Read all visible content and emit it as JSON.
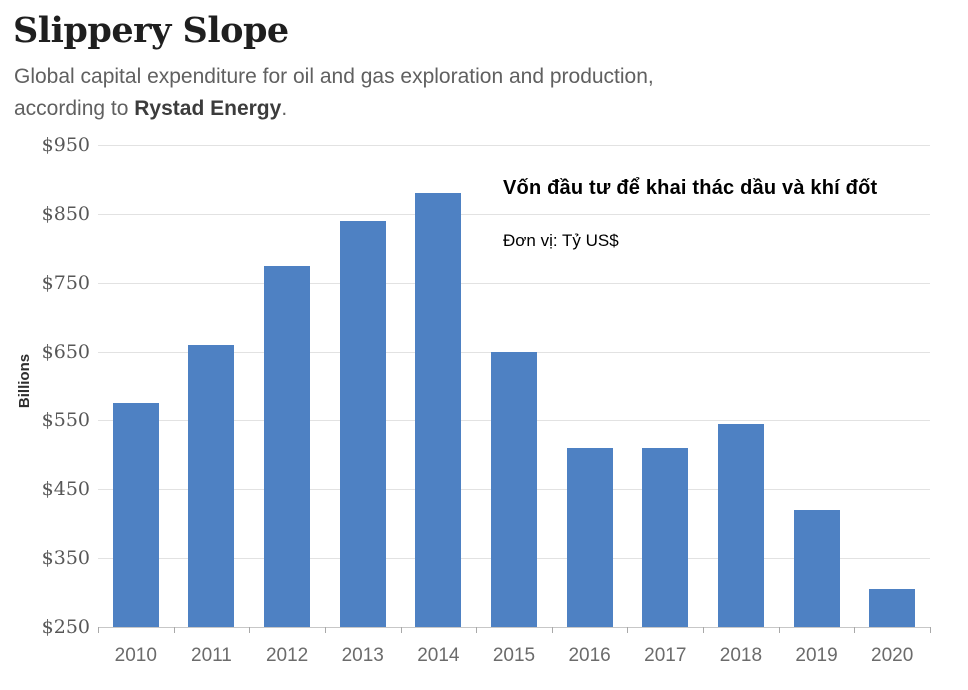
{
  "header": {
    "title": "Slippery Slope",
    "subtitle_line1": "Global capital expenditure for oil and gas exploration and production,",
    "subtitle_prefix": "according to ",
    "subtitle_source": "Rystad Energy",
    "subtitle_suffix": "."
  },
  "overlay": {
    "title_vi": "Vốn đầu tư để khai thác dầu và khí đốt",
    "unit_vi": "Đơn vị: Tỷ US$"
  },
  "chart_data": {
    "type": "bar",
    "title": "Slippery Slope",
    "categories": [
      "2010",
      "2011",
      "2012",
      "2013",
      "2014",
      "2015",
      "2016",
      "2017",
      "2018",
      "2019",
      "2020"
    ],
    "values": [
      575,
      660,
      775,
      840,
      880,
      650,
      510,
      510,
      545,
      420,
      305
    ],
    "xlabel": "",
    "ylabel": "Billions",
    "ylim": [
      250,
      950
    ],
    "ytick_step": 100,
    "ytick_labels": [
      "$250",
      "$350",
      "$450",
      "$550",
      "$650",
      "$750",
      "$850",
      "$950"
    ],
    "grid": true,
    "legend": "none",
    "bar_color": "#4e81c3",
    "gridline_color": "#e2e2e2",
    "axis_line_color": "#c7c7c7",
    "tick_color": "#a9a9a9"
  }
}
